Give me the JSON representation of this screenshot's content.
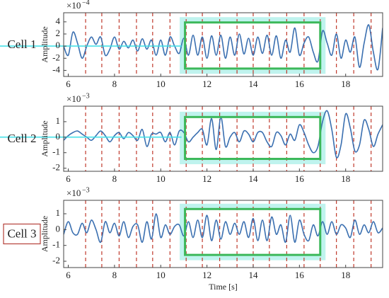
{
  "chart_data": [
    {
      "type": "line",
      "label": "Cell 1",
      "ylabel": "Amplitude",
      "multiplier": {
        "base": "×10",
        "exponent": "−4"
      },
      "xlim": [
        5.8,
        19.6
      ],
      "ylim": [
        -5,
        5.5
      ],
      "xticks": [
        6,
        8,
        10,
        12,
        14,
        16,
        18
      ],
      "yticks": [
        4,
        2,
        0,
        -2,
        -4
      ],
      "x": [
        5.8,
        6.0,
        6.2,
        6.4,
        6.6,
        6.8,
        7.0,
        7.2,
        7.4,
        7.6,
        7.8,
        8.0,
        8.2,
        8.4,
        8.6,
        8.8,
        9.0,
        9.2,
        9.4,
        9.6,
        9.8,
        10.0,
        10.2,
        10.4,
        10.6,
        10.8,
        11.0,
        11.2,
        11.4,
        11.6,
        11.8,
        12.0,
        12.2,
        12.4,
        12.6,
        12.8,
        13.0,
        13.2,
        13.4,
        13.6,
        13.8,
        14.0,
        14.2,
        14.4,
        14.6,
        14.8,
        15.0,
        15.2,
        15.4,
        15.6,
        15.8,
        16.0,
        16.2,
        16.4,
        16.6,
        16.8,
        17.0,
        17.2,
        17.4,
        17.6,
        17.8,
        18.0,
        18.2,
        18.4,
        18.6,
        18.8,
        19.0,
        19.2,
        19.4,
        19.6
      ],
      "series": [
        {
          "color": "#3a6fb0",
          "values": [
            0,
            -1.5,
            2.3,
            0.5,
            -2,
            0,
            1.5,
            0.3,
            1.5,
            -1.5,
            -0.5,
            1.5,
            -0.5,
            0.8,
            -0.3,
            1.0,
            -0.8,
            1.2,
            -0.5,
            1.0,
            -1.5,
            1.0,
            -1.5,
            1.5,
            0,
            -1.2,
            1.3,
            -1.5,
            1.8,
            -1.5,
            1.5,
            -2,
            1.7,
            -1.5,
            1.8,
            -2,
            1.5,
            -1.5,
            2,
            -1.3,
            1.3,
            -1.5,
            1.5,
            -1.2,
            1.8,
            -1.5,
            1.7,
            -2,
            1,
            -1,
            3,
            -1.5,
            0.5,
            1.5,
            -1,
            -2.5,
            2.5,
            0.5,
            -1.5,
            2,
            -2,
            1,
            -1,
            1.5,
            -3.5,
            0.5,
            3.5,
            -1,
            -3.8,
            3
          ]
        }
      ],
      "event_times": [
        6.75,
        7.45,
        8.2,
        8.95,
        9.65,
        10.4,
        11.1,
        11.8,
        12.55,
        13.3,
        14.0,
        14.7,
        15.45,
        16.2,
        16.9,
        17.6,
        18.35,
        19.1
      ],
      "event_color": "#c0392b",
      "box": {
        "x": [
          11.05,
          16.9
        ],
        "y": [
          -3.7,
          3.9
        ],
        "color": "#3cb85a"
      },
      "highlight_line": true
    },
    {
      "type": "line",
      "label": "Cell 2",
      "ylabel": "Amplitude",
      "multiplier": {
        "base": "×10",
        "exponent": "−3"
      },
      "xlim": [
        5.8,
        19.6
      ],
      "ylim": [
        -2.2,
        2
      ],
      "xticks": [
        6,
        8,
        10,
        12,
        14,
        16,
        18
      ],
      "yticks": [
        1,
        0,
        -1,
        -2
      ],
      "x": [
        5.8,
        6.0,
        6.2,
        6.4,
        6.6,
        6.8,
        7.0,
        7.2,
        7.4,
        7.6,
        7.8,
        8.0,
        8.2,
        8.4,
        8.6,
        8.8,
        9.0,
        9.2,
        9.4,
        9.6,
        9.8,
        10.0,
        10.2,
        10.4,
        10.6,
        10.8,
        11.0,
        11.2,
        11.4,
        11.6,
        11.8,
        12.0,
        12.2,
        12.4,
        12.6,
        12.8,
        13.0,
        13.2,
        13.4,
        13.6,
        13.8,
        14.0,
        14.2,
        14.4,
        14.6,
        14.8,
        15.0,
        15.2,
        15.4,
        15.6,
        15.8,
        16.0,
        16.2,
        16.4,
        16.6,
        16.8,
        17.0,
        17.2,
        17.4,
        17.6,
        17.8,
        18.0,
        18.2,
        18.4,
        18.6,
        18.8,
        19.0,
        19.2,
        19.4,
        19.6
      ],
      "series": [
        {
          "color": "#3a6fb0",
          "values": [
            -0.2,
            0.1,
            0.3,
            0.4,
            0.2,
            0,
            -0.2,
            0.1,
            0.4,
            0.1,
            -0.3,
            0.1,
            0.3,
            -0.1,
            0.3,
            0.1,
            -0.2,
            0.5,
            -0.6,
            0.2,
            0.2,
            0.3,
            -0.3,
            0.3,
            -0.5,
            0.4,
            0.3,
            -0.3,
            0,
            0.3,
            0.5,
            -0.5,
            1.2,
            -0.8,
            1.3,
            -0.6,
            0,
            0.3,
            -0.3,
            0.4,
            0.2,
            -0.3,
            0.3,
            0.3,
            -0.3,
            -0.6,
            0.3,
            0.1,
            -0.5,
            0.2,
            -0.2,
            0.8,
            0.3,
            -0.5,
            -1.0,
            -0.6,
            1,
            1.7,
            0.5,
            -1.3,
            -0.5,
            1.5,
            0.6,
            -0.9,
            -0.5,
            1.1,
            0.5,
            -0.6,
            0.2,
            0.8
          ]
        }
      ],
      "event_times": [
        6.75,
        7.45,
        8.2,
        8.95,
        9.65,
        10.4,
        11.1,
        11.8,
        12.55,
        13.3,
        14.0,
        14.7,
        15.45,
        16.2,
        16.9,
        17.6,
        18.35,
        19.1
      ],
      "event_color": "#c0392b",
      "box": {
        "x": [
          11.05,
          16.9
        ],
        "y": [
          -1.4,
          1.3
        ],
        "color": "#3cb85a"
      },
      "highlight_line": true
    },
    {
      "type": "line",
      "label": "Cell 3",
      "ylabel": "Amplitude",
      "xlabel": "Time [s]",
      "multiplier": {
        "base": "×10",
        "exponent": "−3"
      },
      "xlim": [
        5.8,
        19.6
      ],
      "ylim": [
        -2.4,
        1.85
      ],
      "xticks": [
        6,
        8,
        10,
        12,
        14,
        16,
        18
      ],
      "yticks": [
        1,
        0,
        -1,
        -2
      ],
      "x": [
        5.8,
        6.0,
        6.2,
        6.4,
        6.6,
        6.8,
        7.0,
        7.2,
        7.4,
        7.6,
        7.8,
        8.0,
        8.2,
        8.4,
        8.6,
        8.8,
        9.0,
        9.2,
        9.4,
        9.6,
        9.8,
        10.0,
        10.2,
        10.4,
        10.6,
        10.8,
        11.0,
        11.2,
        11.4,
        11.6,
        11.8,
        12.0,
        12.2,
        12.4,
        12.6,
        12.8,
        13.0,
        13.2,
        13.4,
        13.6,
        13.8,
        14.0,
        14.2,
        14.4,
        14.6,
        14.8,
        15.0,
        15.2,
        15.4,
        15.6,
        15.8,
        16.0,
        16.2,
        16.4,
        16.6,
        16.8,
        17.0,
        17.2,
        17.4,
        17.6,
        17.8,
        18.0,
        18.2,
        18.4,
        18.6,
        18.8,
        19.0,
        19.2,
        19.4,
        19.6
      ],
      "series": [
        {
          "color": "#3a6fb0",
          "values": [
            -0.3,
            0.5,
            -0.2,
            -0.3,
            0.4,
            -0.2,
            0.6,
            0,
            -0.8,
            0.5,
            -0.2,
            0.4,
            -0.4,
            0.5,
            -0.5,
            0.2,
            0.3,
            -0.8,
            0.5,
            -0.6,
            1,
            -0.5,
            0.3,
            -0.3,
            0.2,
            0.3,
            -0.4,
            0.5,
            -0.5,
            0.6,
            -0.5,
            0.9,
            -0.7,
            0.6,
            -0.6,
            0.5,
            -0.3,
            0.4,
            -0.3,
            0.5,
            -0.5,
            0.7,
            -0.7,
            0.6,
            -0.7,
            0.8,
            -0.3,
            0.3,
            -0.8,
            0.9,
            -0.8,
            0.6,
            -0.3,
            -0.7,
            0.3,
            -0.4,
            0.5,
            -0.3,
            0.5,
            -0.3,
            0.3,
            0.1,
            -0.5,
            0.6,
            -0.3,
            0.3,
            -0.2,
            0.5,
            -0.2,
            0.1
          ]
        }
      ],
      "event_times": [
        6.75,
        7.45,
        8.2,
        8.95,
        9.65,
        10.4,
        11.1,
        11.8,
        12.55,
        13.3,
        14.0,
        14.7,
        15.45,
        16.2,
        16.9,
        17.6,
        18.35,
        19.1
      ],
      "event_color": "#c0392b",
      "box": {
        "x": [
          11.05,
          16.9
        ],
        "y": [
          -1.6,
          1.3
        ],
        "color": "#3cb85a"
      },
      "label_boxed": true
    }
  ]
}
